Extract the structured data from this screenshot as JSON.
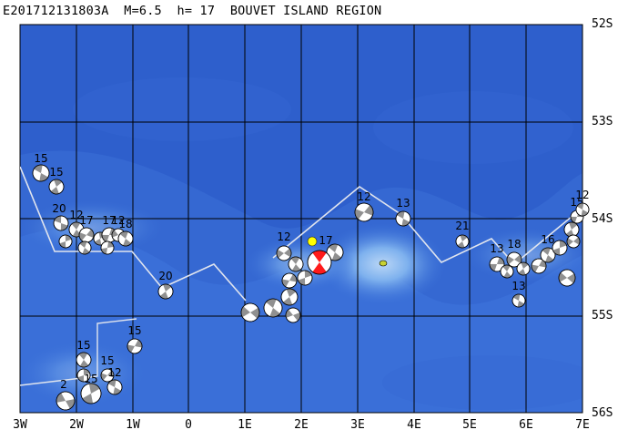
{
  "title": "E201712131803A  M=6.5  h= 17  BOUVET ISLAND REGION",
  "colors": {
    "ocean_deep": "#2a58c8",
    "ocean_mid": "#3c74da",
    "ocean_shallow": "#6aa3ea",
    "grid": "#000000",
    "ridge": "#dfe4ee",
    "main_event": "#ff1a1a",
    "epicenter_star": "#ffff00",
    "island": "#c8d232",
    "bg_mechanism": "#909090"
  },
  "lat_labels": [
    "52S",
    "53S",
    "54S",
    "55S",
    "56S"
  ],
  "lon_labels": [
    "3W",
    "2W",
    "1W",
    "0",
    "1E",
    "2E",
    "3E",
    "4E",
    "5E",
    "6E",
    "7E"
  ],
  "depth_labels": [
    "15",
    "15",
    "20",
    "12",
    "17",
    "17",
    "12",
    "18",
    "12",
    "12",
    "13",
    "12",
    "20",
    "15",
    "15",
    "15",
    "12",
    "12",
    "2",
    "15",
    "21",
    "13",
    "13",
    "18",
    "13",
    "13",
    "16",
    "17",
    "15",
    "15",
    "15",
    "12"
  ],
  "main_event": {
    "label": "17",
    "depth_km": 17,
    "magnitude": 6.5,
    "lat": -54.45,
    "lon": 2.3
  },
  "island_name_shown": false
}
